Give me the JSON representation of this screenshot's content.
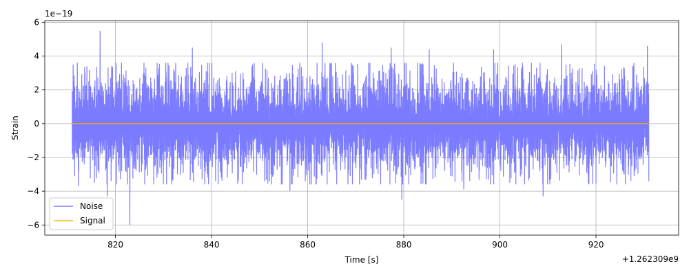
{
  "chart_data": {
    "type": "line",
    "xlabel": "Time [s]",
    "ylabel": "Strain",
    "x_offset_label": "+1.262309e9",
    "y_multiplier_label": "1e−19",
    "xlim": [
      805.3,
      937.2
    ],
    "ylim": [
      -6.6,
      6.1
    ],
    "x_ticks": [
      820,
      840,
      860,
      880,
      900,
      920
    ],
    "x_tick_labels": [
      "820",
      "840",
      "860",
      "880",
      "900",
      "920"
    ],
    "y_ticks": [
      -6,
      -4,
      -2,
      0,
      2,
      4,
      6
    ],
    "y_tick_labels": [
      "−6",
      "−4",
      "−2",
      "0",
      "2",
      "4",
      "6"
    ],
    "grid": true,
    "legend_position": "lower-left",
    "series": [
      {
        "name": "Noise",
        "color": "#7b7bff",
        "x_range": [
          811,
          931
        ],
        "y_values_note_free": true,
        "peaks": [
          {
            "x": 811.2,
            "y": 3.5
          },
          {
            "x": 812.3,
            "y": -3.7
          },
          {
            "x": 816.8,
            "y": 5.5
          },
          {
            "x": 818.3,
            "y": -4.3
          },
          {
            "x": 819.2,
            "y": 3.4
          },
          {
            "x": 823.0,
            "y": -6.0
          },
          {
            "x": 826.0,
            "y": 3.0
          },
          {
            "x": 836.0,
            "y": 4.5
          },
          {
            "x": 856.3,
            "y": -4.0
          },
          {
            "x": 863.0,
            "y": 4.8
          },
          {
            "x": 877.4,
            "y": 4.5
          },
          {
            "x": 879.6,
            "y": -4.5
          },
          {
            "x": 885.3,
            "y": 4.4
          },
          {
            "x": 892.5,
            "y": -3.9
          },
          {
            "x": 898.7,
            "y": 4.4
          },
          {
            "x": 909.0,
            "y": -4.3
          },
          {
            "x": 912.8,
            "y": 4.7
          },
          {
            "x": 930.7,
            "y": 4.6
          },
          {
            "x": 931.0,
            "y": -3.4
          }
        ],
        "typical_amplitude": 2.6
      },
      {
        "name": "Signal",
        "color": "#ffa500",
        "x": [
          811,
          931
        ],
        "y": [
          0,
          0
        ]
      }
    ]
  }
}
